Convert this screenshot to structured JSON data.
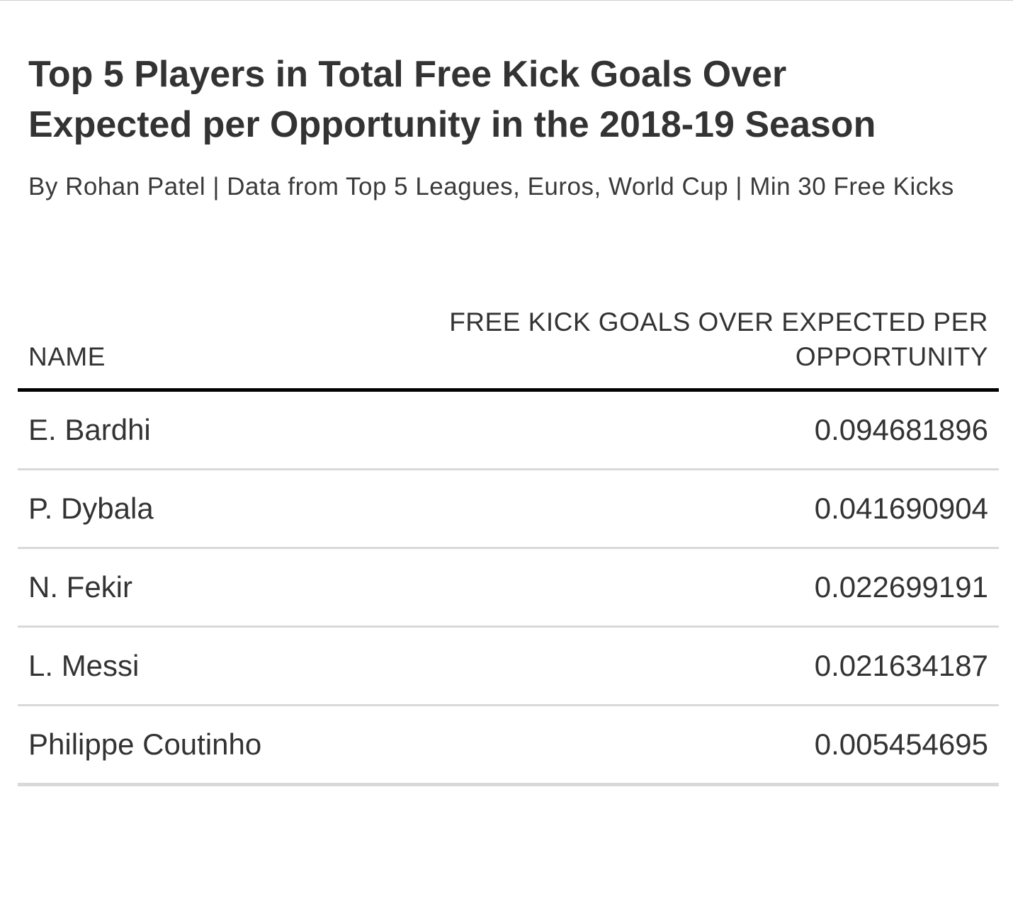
{
  "title": "Top 5 Players in Total Free Kick Goals Over Expected per Opportunity in the 2018-19 Season",
  "subtitle": "By Rohan Patel | Data from Top 5 Leagues, Euros, World Cup | Min 30 Free Kicks",
  "chart_data": {
    "type": "table",
    "columns": [
      "NAME",
      "FREE KICK GOALS OVER EXPECTED PER OPPORTUNITY"
    ],
    "rows": [
      {
        "name": "E. Bardhi",
        "value": "0.094681896"
      },
      {
        "name": "P. Dybala",
        "value": "0.041690904"
      },
      {
        "name": "N. Fekir",
        "value": "0.022699191"
      },
      {
        "name": "L. Messi",
        "value": "0.021634187"
      },
      {
        "name": "Philippe Coutinho",
        "value": "0.005454695"
      }
    ]
  }
}
